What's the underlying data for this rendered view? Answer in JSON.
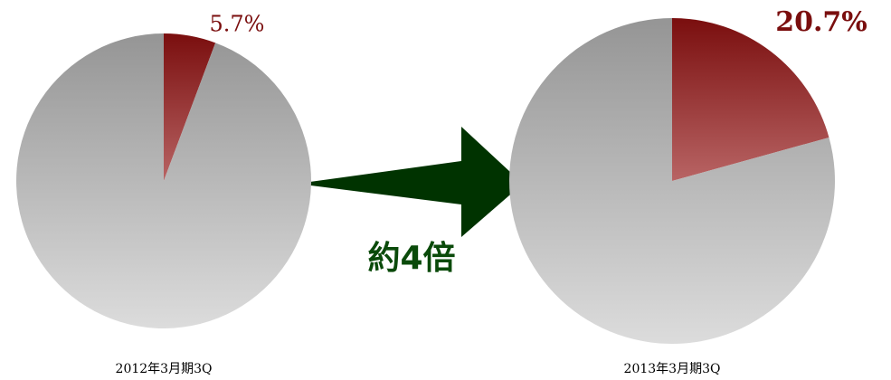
{
  "chart_data": [
    {
      "type": "pie",
      "title": "2012年3月期3Q",
      "values": [
        5.7,
        94.3
      ],
      "value_labels": [
        "5.7%",
        null
      ],
      "colors": [
        "red",
        "grey"
      ],
      "label_style": "normal"
    },
    {
      "type": "pie",
      "title": "2013年3月期3Q",
      "values": [
        20.7,
        79.3
      ],
      "value_labels": [
        "20.7%",
        null
      ],
      "colors": [
        "red",
        "grey"
      ],
      "label_style": "bold"
    }
  ],
  "annotation": "約4倍"
}
